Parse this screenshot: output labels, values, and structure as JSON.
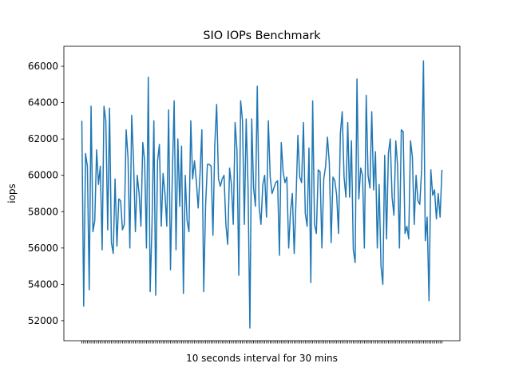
{
  "chart_data": {
    "type": "line",
    "title": "SIO IOPs Benchmark",
    "xlabel": "10 seconds interval for 30 mins",
    "ylabel": "iops",
    "ylim": [
      50900,
      67100
    ],
    "yticks": [
      52000,
      54000,
      56000,
      58000,
      60000,
      62000,
      64000,
      66000
    ],
    "ytick_labels": [
      "52000",
      "54000",
      "56000",
      "58000",
      "60000",
      "62000",
      "64000",
      "66000"
    ],
    "xtick_labels": "unlabeled ticks at every sample",
    "grid": false,
    "legend": "none",
    "series": [
      {
        "color": "#1f77b4",
        "values": [
          63000,
          52800,
          61200,
          60500,
          53700,
          63800,
          56900,
          57500,
          61400,
          59500,
          60500,
          55900,
          63800,
          63000,
          57000,
          63700,
          56300,
          55700,
          59800,
          56100,
          58700,
          58600,
          57000,
          57300,
          62500,
          61000,
          56000,
          63300,
          60800,
          56900,
          60000,
          59000,
          57200,
          61800,
          60800,
          56000,
          65400,
          53600,
          57300,
          63000,
          53400,
          60800,
          61700,
          57200,
          60100,
          59000,
          57200,
          63600,
          54800,
          60000,
          64100,
          55900,
          62000,
          58300,
          61600,
          53500,
          60000,
          57500,
          56900,
          63000,
          59800,
          60800,
          59700,
          58200,
          60100,
          62500,
          53600,
          58300,
          60600,
          60600,
          60500,
          56700,
          61700,
          63900,
          59800,
          59400,
          59800,
          60000,
          57300,
          56200,
          60400,
          59500,
          57300,
          62900,
          61400,
          54500,
          64100,
          63000,
          57300,
          63100,
          59400,
          51600,
          63100,
          59300,
          58300,
          64900,
          58300,
          57300,
          59500,
          60000,
          57700,
          63000,
          59900,
          59000,
          59300,
          59600,
          59700,
          55600,
          61800,
          60200,
          59600,
          59900,
          56000,
          58000,
          59000,
          55700,
          58700,
          62200,
          59900,
          59600,
          62900,
          57900,
          57200,
          61500,
          54100,
          64100,
          57300,
          56800,
          60300,
          60200,
          56000,
          59800,
          60500,
          62100,
          60700,
          56300,
          59900,
          59700,
          58900,
          56800,
          62300,
          63500,
          59900,
          58800,
          62900,
          58800,
          61900,
          55900,
          55200,
          65300,
          58700,
          60400,
          60000,
          56000,
          64400,
          60000,
          59300,
          63500,
          59200,
          61300,
          56000,
          59500,
          55000,
          54000,
          61100,
          56500,
          61200,
          62000,
          58800,
          57800,
          61900,
          60500,
          56000,
          62500,
          62400,
          56800,
          57200,
          56500,
          61900,
          61000,
          57300,
          60000,
          58600,
          58400,
          60300,
          66300,
          56400,
          57700,
          53100,
          60300,
          58900,
          59200,
          57600,
          59000,
          57700,
          60300
        ]
      }
    ]
  }
}
